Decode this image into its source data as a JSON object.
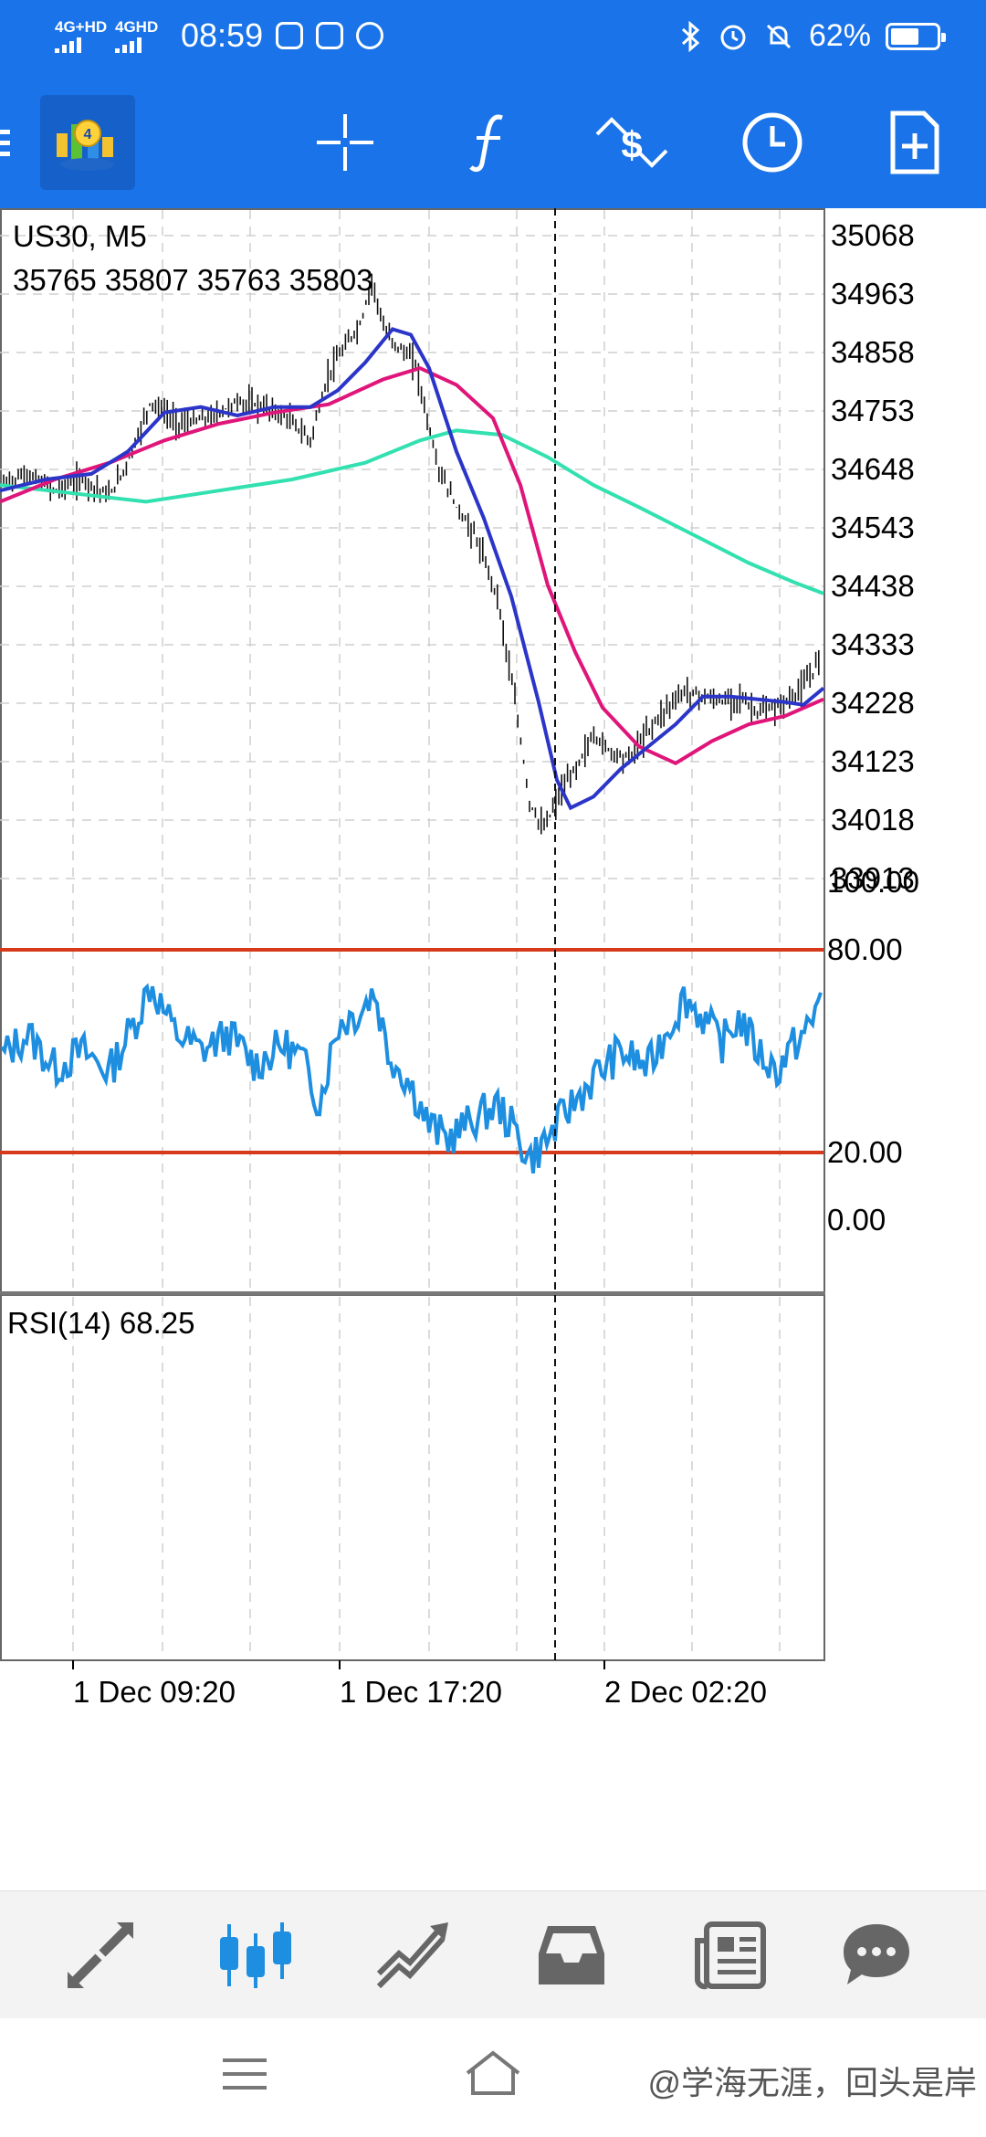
{
  "status_bar": {
    "net1": "4G+HD",
    "net2": "4GHD",
    "time": "08:59",
    "battery": "62%"
  },
  "toolbar": {
    "icons": [
      "metatrader-logo-icon",
      "crosshair-icon",
      "indicators-function-icon",
      "trade-dollar-icon",
      "clock-icon",
      "new-document-icon"
    ]
  },
  "chart": {
    "symbol_label": "US30, M5",
    "ohlc": "35765 35807 35763 35803",
    "price_ticks": [
      "35068",
      "34963",
      "34858",
      "34753",
      "34648",
      "34543",
      "34438",
      "34333",
      "34228",
      "34123",
      "34018",
      "33913"
    ],
    "rsi_label": "RSI(14) 68.25",
    "rsi_ticks": [
      "100.00",
      "80.00",
      "20.00",
      "0.00"
    ],
    "time_ticks": [
      "1 Dec 09:20",
      "1 Dec 17:20",
      "2 Dec 02:20"
    ],
    "colors": {
      "ma_fast": "#2b35c8",
      "ma_mid": "#e0157a",
      "ma_slow": "#33e0b0",
      "rsi": "#1e8fe0",
      "rsi_levels": "#d63a1a",
      "candles": "#111111"
    }
  },
  "bottom_nav": {
    "icons": [
      "quotes-arrows-icon",
      "chart-candles-icon",
      "trade-icon",
      "history-inbox-icon",
      "news-icon",
      "chat-icon"
    ],
    "active": "chart-candles-icon"
  },
  "watermark": "@学海无涯，回头是岸"
}
